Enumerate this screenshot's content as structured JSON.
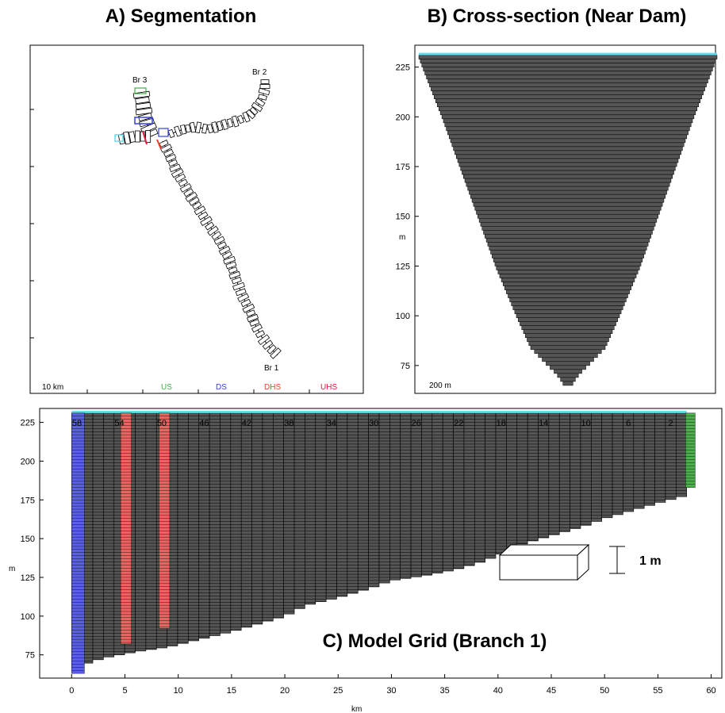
{
  "colors": {
    "cell": "#555555",
    "us": "#3cb043",
    "ds": "#3340e0",
    "dhs": "#f0432a",
    "uhs": "#e21a3c",
    "water_surface": "#66ddee",
    "hot_cell": "#f06262",
    "ds_cell": "#5a60e6",
    "us_cell": "#4cb04c"
  },
  "panel_a": {
    "title": "A) Segmentation",
    "scale_label": "10 km",
    "legend": [
      "US",
      "DS",
      "DHS",
      "UHS"
    ],
    "branch_labels": [
      "Br 1",
      "Br 2",
      "Br 3"
    ]
  },
  "panel_b": {
    "title": "B) Cross-section (Near Dam)",
    "scale_label": "200 m"
  },
  "panel_c": {
    "title": "C) Model Grid (Branch 1)",
    "scale_label": "1 m"
  },
  "chart_data": [
    {
      "type": "other",
      "title": "A) Segmentation",
      "legend": [
        "US",
        "DS",
        "DHS",
        "UHS"
      ],
      "annotations": [
        "Br 1",
        "Br 2",
        "Br 3",
        "10 km"
      ]
    },
    {
      "type": "area",
      "title": "B) Cross-section (Near Dam)",
      "ylabel": "m",
      "yticks": [
        75,
        100,
        125,
        150,
        175,
        200,
        225
      ],
      "ylim": [
        61,
        236
      ],
      "water_surface": 231,
      "profile": {
        "elevation": [
          231,
          225,
          200,
          175,
          150,
          125,
          100,
          85,
          78,
          72,
          68,
          65
        ],
        "half_width_fraction": [
          1.0,
          0.97,
          0.84,
          0.72,
          0.6,
          0.48,
          0.34,
          0.25,
          0.16,
          0.08,
          0.04,
          0.02
        ]
      },
      "annotations": [
        "200 m"
      ]
    },
    {
      "type": "heatmap",
      "title": "C) Model Grid (Branch 1)",
      "xlabel": "km",
      "ylabel": "m",
      "xticks": [
        0,
        5,
        10,
        15,
        20,
        25,
        30,
        35,
        40,
        45,
        50,
        55,
        60
      ],
      "yticks": [
        75,
        100,
        125,
        150,
        175,
        200,
        225
      ],
      "xlim": [
        -3,
        61
      ],
      "ylim": [
        60,
        234
      ],
      "top_segment_labels": [
        58,
        54,
        50,
        46,
        42,
        38,
        34,
        30,
        26,
        22,
        18,
        14,
        10,
        6,
        2
      ],
      "water_surface": 231,
      "bottom_profile": {
        "km": [
          0,
          1.2,
          3,
          6,
          9,
          12,
          15,
          18,
          20,
          22,
          25,
          28,
          30,
          33,
          36,
          38,
          40,
          42,
          45,
          48,
          50,
          52,
          55,
          57.7
        ],
        "elevation": [
          65,
          69,
          73,
          77,
          80,
          85,
          90,
          96,
          100,
          107,
          112,
          118,
          123,
          126,
          130,
          134,
          139,
          146,
          152,
          158,
          163,
          167,
          173,
          178
        ]
      },
      "highlighted_columns": [
        {
          "segment": "DS",
          "km_start": 0,
          "km_end": 1.2,
          "bottom": 63
        },
        {
          "segment": "DHS",
          "km_start": 4.6,
          "km_end": 5.6,
          "bottom": 82
        },
        {
          "segment": "UHS",
          "km_start": 8.2,
          "km_end": 9.2,
          "bottom": 92
        },
        {
          "segment": "US",
          "km_start": 57.6,
          "km_end": 58.5,
          "bottom": 183
        }
      ],
      "annotations": [
        "1 m"
      ]
    }
  ]
}
